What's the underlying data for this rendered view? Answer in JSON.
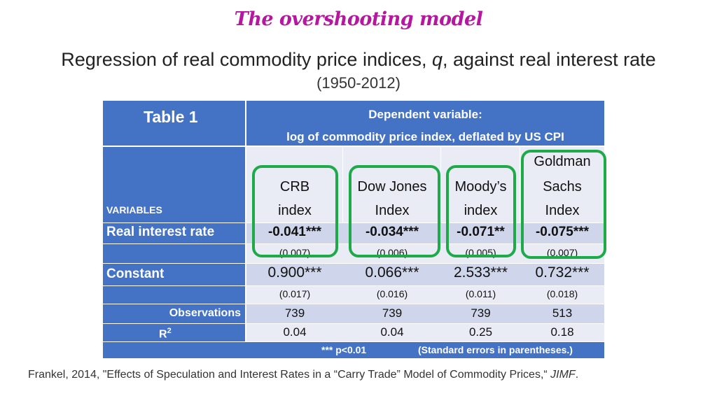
{
  "slide": {
    "title": "The overshooting model",
    "subtitle_pre": "Regression of real commodity price indices, ",
    "subtitle_var": "q",
    "subtitle_post": ", against real interest rate",
    "period": "(1950-2012)"
  },
  "table": {
    "label": "Table 1",
    "dep_var_line1": "Dependent variable:",
    "dep_var_line2": "log of commodity price index, deflated by US CPI",
    "variables_label": "VARIABLES",
    "columns": [
      {
        "line1": "CRB",
        "line2": "index"
      },
      {
        "line1": "Dow Jones",
        "line2": "Index"
      },
      {
        "line1": "Moody’s",
        "line2": "index"
      },
      {
        "line0": "Goldman",
        "line1": "Sachs",
        "line2": "Index"
      }
    ],
    "rows": {
      "real_rate": {
        "label": "Real interest rate",
        "values": [
          "-0.041***",
          "-0.034***",
          "-0.071**",
          "-0.075***"
        ],
        "se": [
          "(0.007)",
          "(0.006)",
          "(0.005)",
          "(0.007)"
        ]
      },
      "constant": {
        "label": "Constant",
        "values": [
          "0.900***",
          "0.066***",
          "2.533***",
          "0.732***"
        ],
        "se": [
          "(0.017)",
          "(0.016)",
          "(0.011)",
          "(0.018)"
        ]
      },
      "observations": {
        "label": "Observations",
        "values": [
          "739",
          "739",
          "739",
          "513"
        ]
      },
      "r2": {
        "label": "R",
        "label_sup": "2",
        "values": [
          "0.04",
          "0.04",
          "0.25",
          "0.18"
        ]
      }
    },
    "footnote_sig": "*** p<0.01",
    "footnote_se": "(Standard errors in parentheses.)"
  },
  "footer": {
    "citation": "Frankel, 2014, \"Effects of Speculation and Interest Rates in a “Carry Trade” Model of Commodity Prices,“ ",
    "journal": "JIMF",
    "end": "."
  },
  "colors": {
    "header_blue": "#4472c4",
    "title_magenta": "#b5179e",
    "highlight_green": "#1faa4a"
  }
}
